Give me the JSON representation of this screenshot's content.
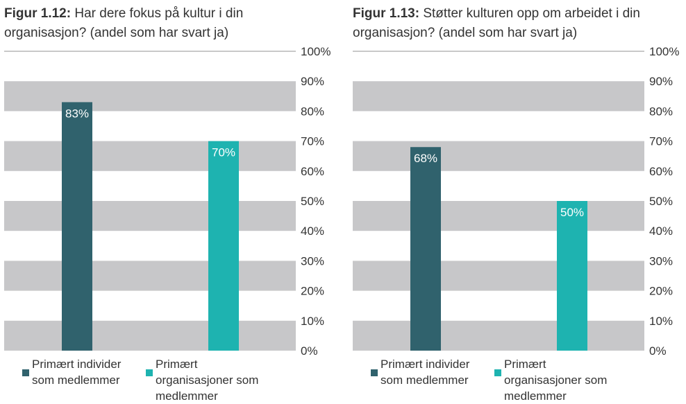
{
  "colors": {
    "band": "#c7c7c9",
    "axisline": "#b5b5b5",
    "series_individer": "#30626d",
    "series_organisasjoner": "#1eb3b0"
  },
  "legend": [
    {
      "label": "Primært individer som medlemmer",
      "color": "#30626d"
    },
    {
      "label": "Primært organisasjoner som medlemmer",
      "color": "#1eb3b0"
    }
  ],
  "chart_data": [
    {
      "type": "bar",
      "title_prefix": "Figur 1.12:",
      "title": "Har dere fokus på kultur i din organisasjon? (andel som har svart ja)",
      "categories": [
        "Primært individer som medlemmer",
        "Primært organisasjoner som medlemmer"
      ],
      "values": [
        83,
        70
      ],
      "value_labels": [
        "83%",
        "70%"
      ],
      "ylim": [
        0,
        100
      ],
      "yticks": [
        "0%",
        "10%",
        "20%",
        "30%",
        "40%",
        "50%",
        "60%",
        "70%",
        "80%",
        "90%",
        "100%"
      ],
      "y_axis_side": "right",
      "grid": "alternating bands"
    },
    {
      "type": "bar",
      "title_prefix": "Figur 1.13:",
      "title": "Støtter kulturen opp om arbeidet i din organisasjon? (andel som har svart ja)",
      "categories": [
        "Primært individer som medlemmer",
        "Primært organisasjoner som medlemmer"
      ],
      "values": [
        68,
        50
      ],
      "value_labels": [
        "68%",
        "50%"
      ],
      "ylim": [
        0,
        100
      ],
      "yticks": [
        "0%",
        "10%",
        "20%",
        "30%",
        "40%",
        "50%",
        "60%",
        "70%",
        "80%",
        "90%",
        "100%"
      ],
      "y_axis_side": "right",
      "grid": "alternating bands"
    }
  ]
}
